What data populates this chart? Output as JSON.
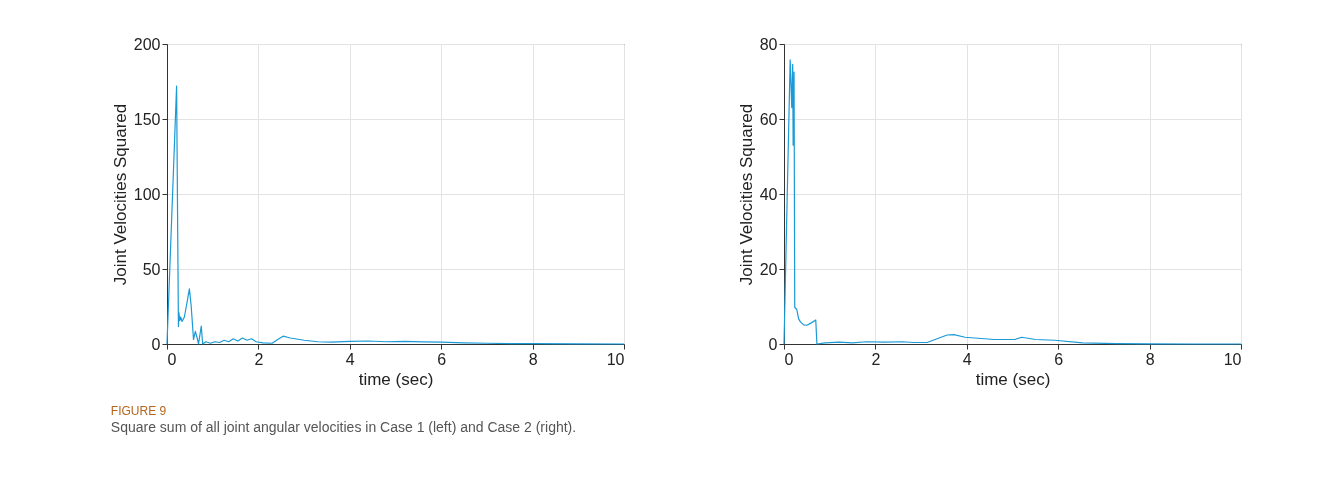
{
  "chart_data": [
    {
      "type": "line",
      "xlabel": "time (sec)",
      "ylabel": "Joint Velocities Squared",
      "color": "#1b9ad6",
      "grid": true,
      "annotations": [
        "FIGURE 9",
        "Square sum of all joint angular velocities in Case 1 (left) and Case 2 (right)."
      ],
      "xlim": [
        0,
        10
      ],
      "ylim": [
        0,
        200
      ],
      "xticks": [
        0,
        2,
        4,
        6,
        8,
        10
      ],
      "yticks": [
        0,
        50,
        100,
        150,
        200
      ],
      "x": [
        0,
        0.21,
        0.25,
        0.26,
        0.28,
        0.3,
        0.33,
        0.38,
        0.44,
        0.49,
        0.53,
        0.58,
        0.62,
        0.66,
        0.69,
        0.75,
        0.78,
        0.85,
        0.95,
        1.05,
        1.15,
        1.25,
        1.35,
        1.45,
        1.55,
        1.65,
        1.75,
        1.85,
        1.95,
        2.1,
        2.3,
        2.45,
        2.54,
        2.7,
        3.0,
        3.3,
        3.6,
        4.0,
        4.4,
        4.8,
        5.2,
        5.6,
        6.0,
        6.5,
        7.0,
        7.5,
        8.0,
        9.0,
        10.0
      ],
      "values": [
        0,
        172,
        11.6,
        21,
        15.6,
        18,
        15,
        18,
        28,
        36.8,
        25,
        3,
        8.4,
        4,
        0,
        12,
        0,
        1.5,
        0.5,
        1.5,
        1,
        2.5,
        1.5,
        3.5,
        2,
        4,
        2.5,
        3.5,
        1.5,
        0.8,
        0.5,
        3.5,
        5.2,
        4,
        2.5,
        1.5,
        1.2,
        1.8,
        2,
        1.5,
        1.8,
        1.4,
        1.2,
        0.8,
        0.5,
        0.3,
        0.2,
        0.1,
        0
      ]
    },
    {
      "type": "line",
      "xlabel": "time (sec)",
      "ylabel": "Joint Velocities Squared",
      "color": "#1b9ad6",
      "grid": true,
      "xlim": [
        0,
        10
      ],
      "ylim": [
        0,
        80
      ],
      "xticks": [
        0,
        2,
        4,
        6,
        8,
        10
      ],
      "yticks": [
        0,
        20,
        40,
        60,
        80
      ],
      "x": [
        0,
        0.135,
        0.17,
        0.19,
        0.2,
        0.22,
        0.235,
        0.28,
        0.32,
        0.36,
        0.43,
        0.5,
        0.58,
        0.695,
        0.72,
        0.9,
        1.2,
        1.5,
        1.8,
        2.2,
        2.6,
        2.83,
        3.13,
        3.57,
        3.72,
        3.96,
        4.6,
        5.05,
        5.2,
        5.5,
        5.93,
        6.53,
        7.28,
        8.0,
        9.0,
        10.0
      ],
      "values": [
        0,
        75.8,
        63,
        74.6,
        53,
        72.5,
        9.8,
        9.2,
        6.7,
        5.9,
        5.1,
        5,
        5.5,
        6.4,
        0,
        0.3,
        0.5,
        0.3,
        0.6,
        0.5,
        0.6,
        0.4,
        0.4,
        2.4,
        2.5,
        1.8,
        1.2,
        1.2,
        1.8,
        1.2,
        1,
        0.3,
        0.1,
        0.05,
        0,
        0
      ]
    }
  ]
}
